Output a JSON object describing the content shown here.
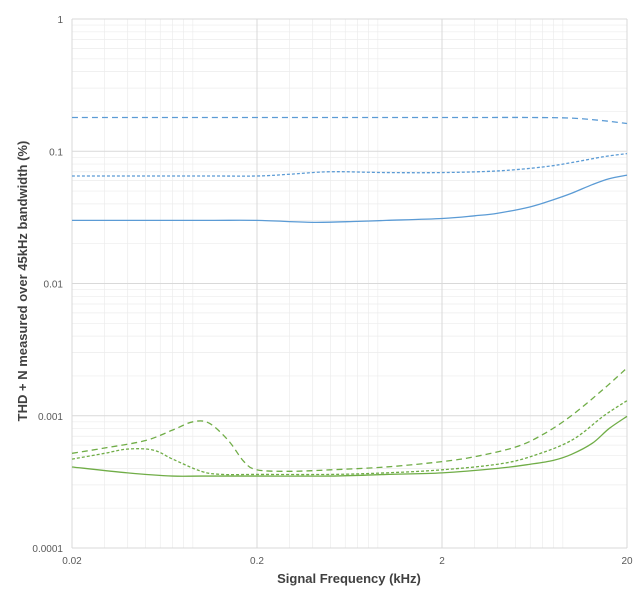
{
  "chart_data": {
    "type": "line",
    "xlabel": "Signal Frequency (kHz)",
    "ylabel": "THD + N measured over 45kHz bandwidth  (%)",
    "x_scale": "log",
    "y_scale": "log",
    "xlim": [
      0.02,
      20
    ],
    "ylim": [
      0.0001,
      1
    ],
    "x_ticks": [
      0.02,
      0.2,
      2,
      20
    ],
    "x_tick_labels": [
      "0.02",
      "0.2",
      "2",
      "20"
    ],
    "y_ticks": [
      1,
      0.1,
      0.01,
      0.001,
      0.0001
    ],
    "y_tick_labels": [
      "1",
      "0.1",
      "0.01",
      "0.001",
      "0.0001"
    ],
    "grid": true,
    "legend": "none",
    "colors": {
      "blue": "#5b9bd5",
      "green": "#70ad47"
    },
    "series": [
      {
        "color": "blue",
        "dash": "long-dash",
        "points": [
          [
            0.02,
            0.18
          ],
          [
            0.05,
            0.18
          ],
          [
            0.2,
            0.18
          ],
          [
            1,
            0.18
          ],
          [
            3,
            0.18
          ],
          [
            6,
            0.18
          ],
          [
            10,
            0.178
          ],
          [
            15,
            0.17
          ],
          [
            20,
            0.162
          ]
        ]
      },
      {
        "color": "blue",
        "dash": "short-dash",
        "points": [
          [
            0.02,
            0.065
          ],
          [
            0.1,
            0.065
          ],
          [
            0.2,
            0.065
          ],
          [
            0.3,
            0.067
          ],
          [
            0.5,
            0.07
          ],
          [
            1,
            0.069
          ],
          [
            2,
            0.069
          ],
          [
            4,
            0.071
          ],
          [
            7,
            0.076
          ],
          [
            10,
            0.082
          ],
          [
            15,
            0.091
          ],
          [
            20,
            0.096
          ]
        ]
      },
      {
        "color": "blue",
        "dash": "solid",
        "points": [
          [
            0.02,
            0.03
          ],
          [
            0.1,
            0.03
          ],
          [
            0.2,
            0.03
          ],
          [
            0.4,
            0.029
          ],
          [
            0.7,
            0.0295
          ],
          [
            1,
            0.03
          ],
          [
            2,
            0.031
          ],
          [
            3,
            0.0325
          ],
          [
            4,
            0.034
          ],
          [
            6,
            0.038
          ],
          [
            8,
            0.043
          ],
          [
            10,
            0.048
          ],
          [
            13,
            0.056
          ],
          [
            16,
            0.062
          ],
          [
            20,
            0.066
          ]
        ]
      },
      {
        "color": "green",
        "dash": "long-dash",
        "points": [
          [
            0.02,
            0.00052
          ],
          [
            0.03,
            0.00057
          ],
          [
            0.05,
            0.00065
          ],
          [
            0.07,
            0.00078
          ],
          [
            0.09,
            0.0009
          ],
          [
            0.11,
            0.00088
          ],
          [
            0.14,
            0.00065
          ],
          [
            0.17,
            0.00045
          ],
          [
            0.2,
            0.00039
          ],
          [
            0.3,
            0.00038
          ],
          [
            0.5,
            0.00039
          ],
          [
            1,
            0.00041
          ],
          [
            2,
            0.00045
          ],
          [
            3,
            0.00049
          ],
          [
            5,
            0.00058
          ],
          [
            7,
            0.00072
          ],
          [
            10,
            0.001
          ],
          [
            15,
            0.0016
          ],
          [
            20,
            0.0023
          ]
        ]
      },
      {
        "color": "green",
        "dash": "short-dash",
        "points": [
          [
            0.02,
            0.00047
          ],
          [
            0.03,
            0.00052
          ],
          [
            0.04,
            0.00056
          ],
          [
            0.055,
            0.00055
          ],
          [
            0.07,
            0.00047
          ],
          [
            0.1,
            0.00038
          ],
          [
            0.13,
            0.00036
          ],
          [
            0.2,
            0.00036
          ],
          [
            0.5,
            0.00036
          ],
          [
            1,
            0.00037
          ],
          [
            2,
            0.00039
          ],
          [
            4,
            0.00043
          ],
          [
            6,
            0.00049
          ],
          [
            10,
            0.00065
          ],
          [
            15,
            0.001
          ],
          [
            20,
            0.0013
          ]
        ]
      },
      {
        "color": "green",
        "dash": "solid",
        "points": [
          [
            0.02,
            0.00041
          ],
          [
            0.04,
            0.00037
          ],
          [
            0.07,
            0.00035
          ],
          [
            0.1,
            0.00035
          ],
          [
            0.2,
            0.00035
          ],
          [
            0.5,
            0.00035
          ],
          [
            1,
            0.00036
          ],
          [
            2,
            0.00037
          ],
          [
            4,
            0.0004
          ],
          [
            6,
            0.00043
          ],
          [
            8,
            0.00046
          ],
          [
            10,
            0.00051
          ],
          [
            13,
            0.00062
          ],
          [
            16,
            0.0008
          ],
          [
            20,
            0.00099
          ]
        ]
      }
    ]
  }
}
